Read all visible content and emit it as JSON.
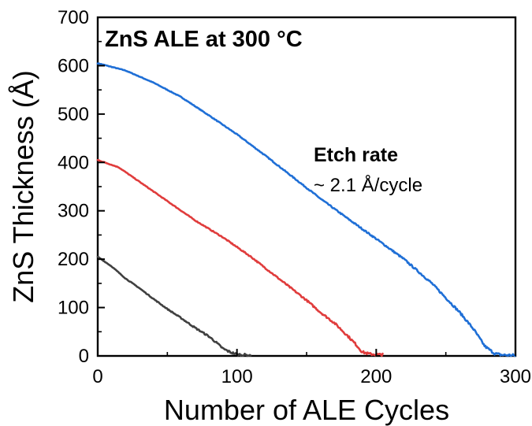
{
  "chart_data": {
    "type": "line",
    "title": "ZnS ALE at 300 °C",
    "xlabel": "Number of ALE Cycles",
    "ylabel": "ZnS Thickness (Å)",
    "xlim": [
      0,
      300
    ],
    "ylim": [
      0,
      700
    ],
    "xticks": [
      "0",
      "100",
      "200",
      "300"
    ],
    "yticks": [
      "0",
      "100",
      "200",
      "300",
      "400",
      "500",
      "600",
      "700"
    ],
    "grid": false,
    "legend": "none",
    "annotations": [
      {
        "label": "Etch rate",
        "value": "~ 2.1 Å/cycle"
      }
    ],
    "series": [
      {
        "color": "#1f6fd6",
        "x": [
          0,
          20,
          40,
          60,
          80,
          100,
          120,
          140,
          160,
          180,
          200,
          220,
          240,
          260,
          270,
          278,
          285,
          290,
          300
        ],
        "values": [
          605,
          590,
          565,
          535,
          497,
          458,
          415,
          370,
          325,
          283,
          242,
          200,
          150,
          90,
          55,
          20,
          5,
          2,
          1
        ]
      },
      {
        "color": "#e03c3c",
        "x": [
          0,
          15,
          30,
          50,
          70,
          90,
          110,
          130,
          150,
          160,
          170,
          180,
          185,
          190,
          195,
          200,
          205
        ],
        "values": [
          405,
          390,
          360,
          320,
          280,
          245,
          205,
          160,
          115,
          90,
          68,
          40,
          25,
          8,
          4,
          3,
          2
        ]
      },
      {
        "color": "#404040",
        "x": [
          0,
          10,
          20,
          30,
          40,
          50,
          60,
          70,
          80,
          85,
          90,
          95,
          100,
          105,
          110
        ],
        "values": [
          205,
          185,
          160,
          140,
          118,
          97,
          78,
          58,
          40,
          28,
          15,
          8,
          3,
          2,
          1
        ]
      }
    ]
  }
}
